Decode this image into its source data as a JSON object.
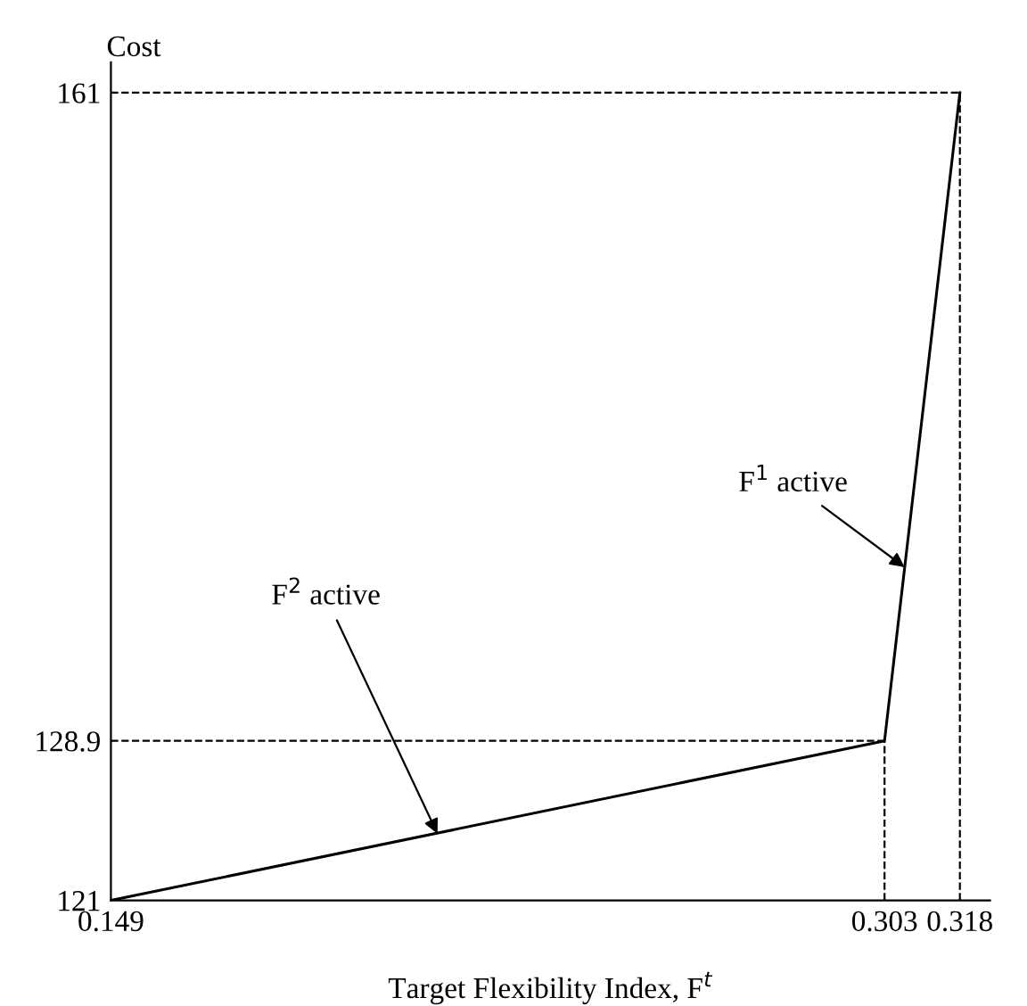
{
  "chart_data": {
    "type": "line",
    "xlabel": "Target Flexibility Index, F$^{t}$",
    "ylabel": "Cost",
    "x": [
      0.149,
      0.303,
      0.318
    ],
    "series": [
      {
        "color": "#000000",
        "values": [
          121,
          128.9,
          161
        ]
      }
    ],
    "xlim": [
      0.149,
      0.324
    ],
    "ylim": [
      121,
      162.5
    ],
    "xticks": [
      0.149,
      0.303,
      0.318
    ],
    "yticks": [
      121,
      128.9,
      161
    ],
    "ref_lines": [
      {
        "axis": "x",
        "value": 0.303,
        "line_style": "dashed",
        "color": "#000000"
      },
      {
        "axis": "y",
        "value": 128.9,
        "line_style": "dashed",
        "color": "#000000"
      },
      {
        "axis": "x",
        "value": 0.318,
        "line_style": "dashed",
        "color": "#000000"
      },
      {
        "axis": "y",
        "value": 161,
        "line_style": "dashed",
        "color": "#000000"
      }
    ],
    "annotations": [
      {
        "text": "F$^{2}$ active",
        "x": 0.214,
        "y": 124.3
      },
      {
        "text": "F$^{1}$ active",
        "x": 0.307,
        "y": 137.5
      }
    ],
    "grid": false,
    "legend": false,
    "marker": "none",
    "line_style": "solid"
  }
}
